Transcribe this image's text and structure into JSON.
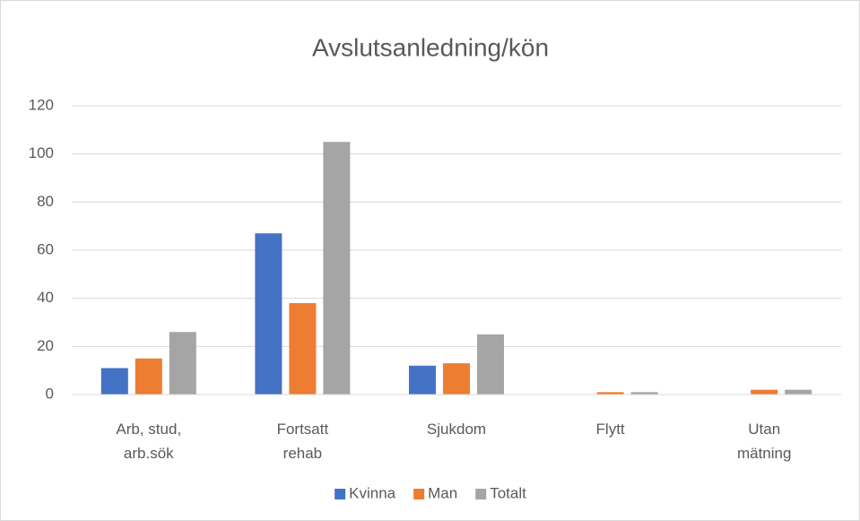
{
  "chart_data": {
    "type": "bar",
    "title": "Avslutsanledning/kön",
    "categories": [
      "Arb, stud, arb.sök",
      "Fortsatt rehab",
      "Sjukdom",
      "Flytt",
      "Utan mätning"
    ],
    "series": [
      {
        "name": "Kvinna",
        "color": "#4472c4",
        "values": [
          11,
          67,
          12,
          0,
          0
        ]
      },
      {
        "name": "Man",
        "color": "#ed7d31",
        "values": [
          15,
          38,
          13,
          1,
          2
        ]
      },
      {
        "name": "Totalt",
        "color": "#a5a5a5",
        "values": [
          26,
          105,
          25,
          1,
          2
        ]
      }
    ],
    "ylim": [
      0,
      120
    ],
    "yticks": [
      0,
      20,
      40,
      60,
      80,
      100,
      120
    ],
    "grid": true,
    "legend": "bottom"
  }
}
